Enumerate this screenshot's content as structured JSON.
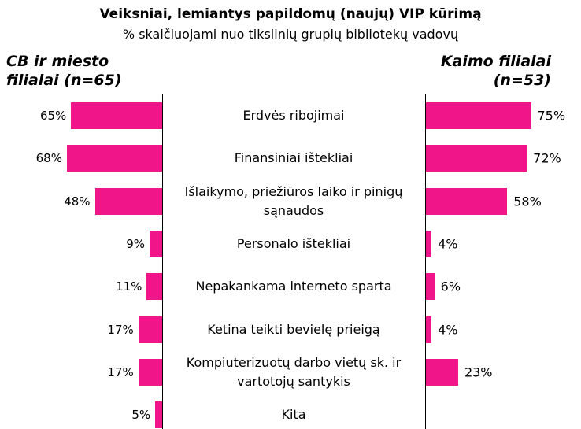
{
  "chart_data": {
    "type": "butterfly",
    "title": "Veiksniai, lemiantys papildomų (naujų) VIP kūrimą",
    "subtitle": "% skaičiuojami nuo tikslinių grupių bibliotekų vadovų",
    "categories": [
      "Erdvės ribojimai",
      "Finansiniai ištekliai",
      "Išlaikymo, priežiūros laiko ir pinigų sąnaudos",
      "Personalo ištekliai",
      "Nepakankama interneto sparta",
      "Ketina teikti bevielę prieigą",
      "Kompiuterizuotų darbo vietų sk. ir vartotojų santykis",
      "Kita"
    ],
    "series": [
      {
        "name": "CB ir miesto filialai (n=65)",
        "color": "#f0168a",
        "values": [
          65,
          68,
          48,
          9,
          11,
          17,
          17,
          5
        ],
        "value_labels": [
          "65%",
          "68%",
          "48%",
          "9%",
          "11%",
          "17%",
          "17%",
          "5%"
        ]
      },
      {
        "name": "Kaimo filialai (n=53)",
        "color": "#f0168a",
        "values": [
          75,
          72,
          58,
          4,
          6,
          4,
          23,
          null
        ],
        "value_labels": [
          "75%",
          "72%",
          "58%",
          "4%",
          "6%",
          "4%",
          "23%",
          null
        ]
      }
    ]
  }
}
